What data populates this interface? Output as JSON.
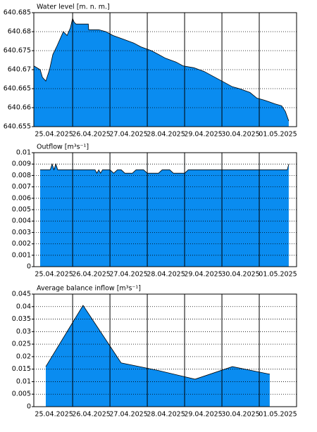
{
  "chart_data": [
    {
      "type": "area",
      "title": "Water level [m. n. m.]",
      "color": "#0a8cf0",
      "x": [
        -0.04,
        0.13,
        0.19,
        0.28,
        0.38,
        0.47,
        0.57,
        0.66,
        0.75,
        0.85,
        0.94,
        1.0,
        1.04,
        1.09,
        1.42,
        1.43,
        1.7,
        1.89,
        2.08,
        2.36,
        2.64,
        2.83,
        3.11,
        3.3,
        3.49,
        3.77,
        3.96,
        4.25,
        4.53,
        4.81,
        5.0,
        5.28,
        5.47,
        5.75,
        5.94,
        6.13,
        6.42,
        6.6,
        6.7,
        6.79
      ],
      "values": [
        640.671,
        640.67,
        640.668,
        640.667,
        640.67,
        640.674,
        640.676,
        640.678,
        640.68,
        640.679,
        640.681,
        640.6835,
        640.6825,
        640.682,
        640.682,
        640.6805,
        640.6805,
        640.68,
        640.679,
        640.678,
        640.677,
        640.676,
        640.675,
        640.674,
        640.673,
        640.672,
        640.671,
        640.6705,
        640.6695,
        640.668,
        640.667,
        640.6655,
        640.665,
        640.664,
        640.6625,
        640.662,
        640.661,
        640.6605,
        640.659,
        640.6565
      ],
      "xlim": [
        -0.04,
        7.0
      ],
      "ylim": [
        640.655,
        640.685
      ],
      "yticks": [
        640.655,
        640.66,
        640.665,
        640.67,
        640.675,
        640.68,
        640.685
      ],
      "xticks": [
        {
          "value": 0.5,
          "label": "25.04.2025"
        },
        {
          "value": 1.5,
          "label": "26.04.2025"
        },
        {
          "value": 2.5,
          "label": "27.04.2025"
        },
        {
          "value": 3.5,
          "label": "28.04.2025"
        },
        {
          "value": 4.5,
          "label": "29.04.2025"
        },
        {
          "value": 5.5,
          "label": "30.04.2025"
        },
        {
          "value": 6.5,
          "label": "01.05.2025"
        }
      ],
      "day_lines": [
        1,
        2,
        3,
        4,
        5,
        6
      ],
      "grid": true
    },
    {
      "type": "area",
      "title": "Outflow [m³s⁻¹]",
      "color": "#0a8cf0",
      "x": [
        0.13,
        0.4,
        0.45,
        0.5,
        0.55,
        0.6,
        1.6,
        1.65,
        1.7,
        1.75,
        1.8,
        2.0,
        2.1,
        2.2,
        2.3,
        2.4,
        2.6,
        2.7,
        2.9,
        3.0,
        3.3,
        3.4,
        3.6,
        3.7,
        4.0,
        4.1,
        6.75,
        6.79
      ],
      "values": [
        0.0085,
        0.0085,
        0.009,
        0.0085,
        0.009,
        0.0085,
        0.0085,
        0.0082,
        0.0085,
        0.0082,
        0.0085,
        0.0085,
        0.0082,
        0.0085,
        0.0085,
        0.0082,
        0.0082,
        0.0085,
        0.0085,
        0.0082,
        0.0082,
        0.0085,
        0.0085,
        0.0082,
        0.0082,
        0.0085,
        0.0085,
        0.009
      ],
      "xlim": [
        -0.04,
        7.0
      ],
      "ylim": [
        0,
        0.01
      ],
      "yticks": [
        0,
        0.001,
        0.002,
        0.003,
        0.004,
        0.005,
        0.006,
        0.007,
        0.008,
        0.009,
        0.01
      ],
      "xticks": [
        {
          "value": 0.5,
          "label": "25.04.2025"
        },
        {
          "value": 1.5,
          "label": "26.04.2025"
        },
        {
          "value": 2.5,
          "label": "27.04.2025"
        },
        {
          "value": 3.5,
          "label": "28.04.2025"
        },
        {
          "value": 4.5,
          "label": "29.04.2025"
        },
        {
          "value": 5.5,
          "label": "30.04.2025"
        },
        {
          "value": 6.5,
          "label": "01.05.2025"
        }
      ],
      "day_lines": [
        1,
        2,
        3,
        4,
        5,
        6
      ],
      "grid": true
    },
    {
      "type": "area",
      "title": "Average balance inflow  [m³s⁻¹]",
      "color": "#0a8cf0",
      "x": [
        0.28,
        1.28,
        2.3,
        3.28,
        4.28,
        5.28,
        6.28
      ],
      "values": [
        0.016,
        0.0405,
        0.0175,
        0.0145,
        0.011,
        0.016,
        0.013
      ],
      "xlim": [
        -0.04,
        7.0
      ],
      "ylim": [
        0,
        0.045
      ],
      "yticks": [
        0,
        0.005,
        0.01,
        0.015,
        0.02,
        0.025,
        0.03,
        0.035,
        0.04,
        0.045
      ],
      "xticks": [
        {
          "value": 0.5,
          "label": "25.04.2025"
        },
        {
          "value": 1.5,
          "label": "26.04.2025"
        },
        {
          "value": 2.5,
          "label": "27.04.2025"
        },
        {
          "value": 3.5,
          "label": "28.04.2025"
        },
        {
          "value": 4.5,
          "label": "29.04.2025"
        },
        {
          "value": 5.5,
          "label": "30.04.2025"
        },
        {
          "value": 6.5,
          "label": "01.05.2025"
        }
      ],
      "day_lines": [
        1,
        2,
        3,
        4,
        5,
        6
      ],
      "grid": true
    }
  ]
}
